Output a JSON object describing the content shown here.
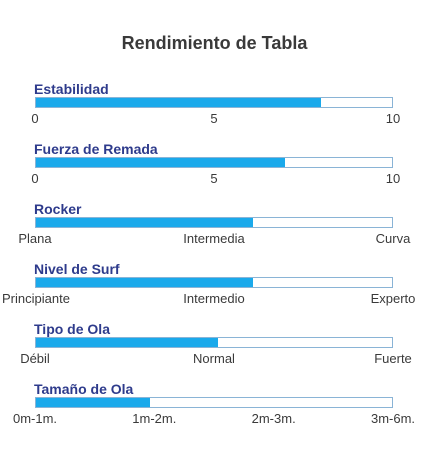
{
  "title": "Rendimiento de Tabla",
  "colors": {
    "fill": "#1aa9eb",
    "label": "#2e3b8c",
    "track_border": "#8ab4d6"
  },
  "chart_data": {
    "type": "bar",
    "title": "Rendimiento de Tabla",
    "metrics": [
      {
        "name": "Estabilidad",
        "value": 0.8,
        "ticks": [
          "0",
          "5",
          "10"
        ]
      },
      {
        "name": "Fuerza de Remada",
        "value": 0.7,
        "ticks": [
          "0",
          "5",
          "10"
        ]
      },
      {
        "name": "Rocker",
        "value": 0.61,
        "ticks": [
          "Plana",
          "Intermedia",
          "Curva"
        ]
      },
      {
        "name": "Nivel de Surf",
        "value": 0.61,
        "ticks": [
          "Principiante",
          "Intermedio",
          "Experto"
        ]
      },
      {
        "name": "Tipo de Ola",
        "value": 0.51,
        "ticks": [
          "Débil",
          "Normal",
          "Fuerte"
        ]
      },
      {
        "name": "Tamaño de Ola",
        "value": 0.32,
        "ticks": [
          "0m-1m.",
          "1m-2m.",
          "2m-3m.",
          "3m-6m."
        ]
      }
    ]
  }
}
